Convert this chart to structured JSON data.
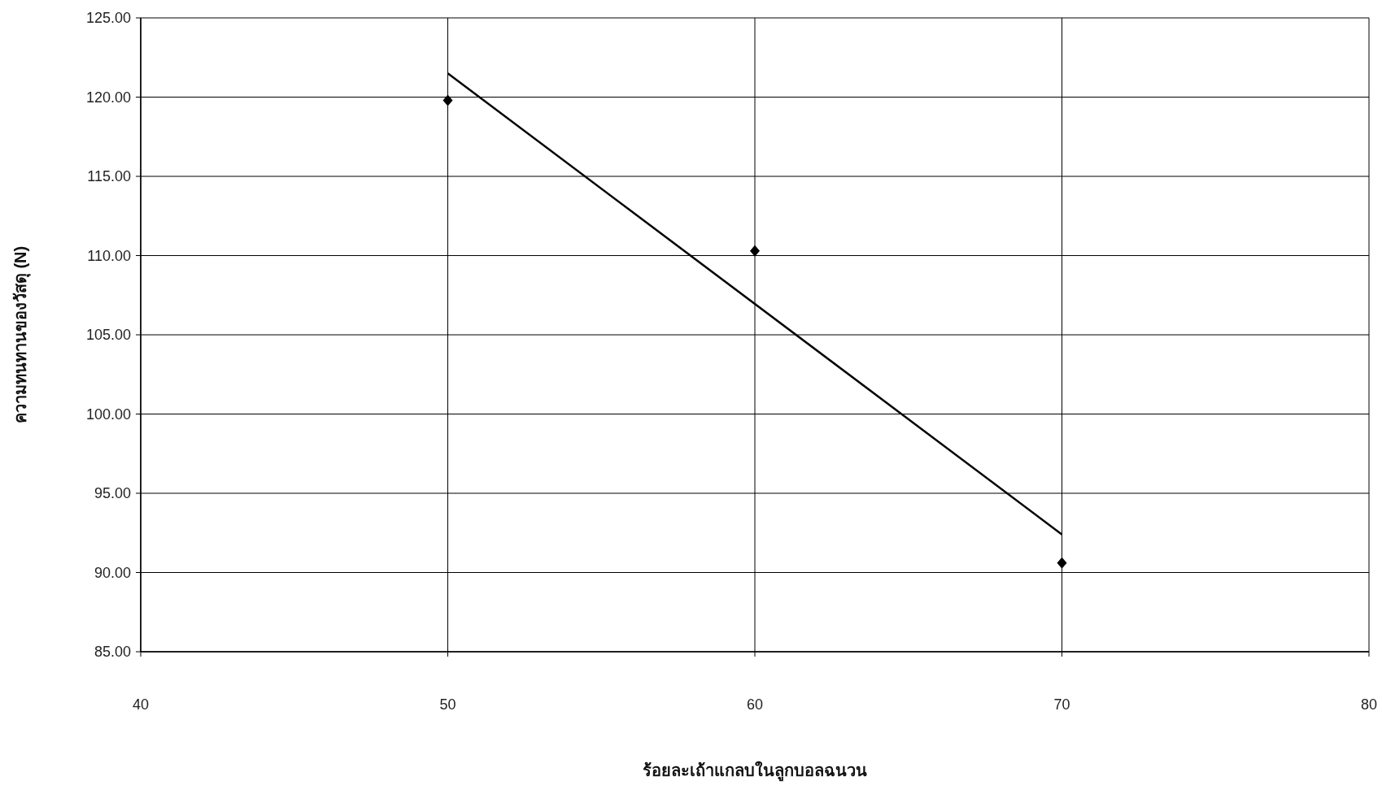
{
  "chart_data": {
    "type": "scatter",
    "xlabel": "ร้อยละเถ้าแกลบในลูกบอลฉนวน",
    "ylabel": "ความทนทานของวัสดุ (N)",
    "xlim": [
      40,
      80
    ],
    "xticks": [
      40,
      50,
      60,
      70,
      80
    ],
    "ylim": [
      85,
      125
    ],
    "yticks": [
      {
        "value": 85,
        "label": "85.00"
      },
      {
        "value": 90,
        "label": "90.00"
      },
      {
        "value": 95,
        "label": "95.00"
      },
      {
        "value": 100,
        "label": "100.00"
      },
      {
        "value": 105,
        "label": "105.00"
      },
      {
        "value": 110,
        "label": "110.00"
      },
      {
        "value": 115,
        "label": "115.00"
      },
      {
        "value": 120,
        "label": "120.00"
      },
      {
        "value": 125,
        "label": "125.00"
      }
    ],
    "grid": true,
    "series": [
      {
        "type": "scatter",
        "color": "#000000",
        "marker": "diamond",
        "x": [
          50,
          60,
          70
        ],
        "values": [
          119.8,
          110.3,
          90.6
        ]
      },
      {
        "type": "line",
        "color": "#000000",
        "marker": "none",
        "line_style": "solid",
        "x": [
          50,
          70
        ],
        "values": [
          121.5,
          92.4
        ]
      }
    ]
  }
}
